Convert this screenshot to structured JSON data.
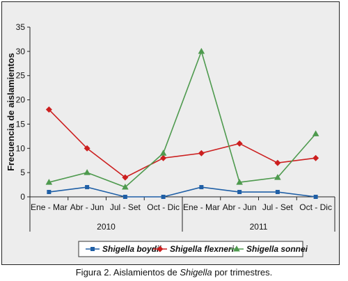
{
  "chart_data": {
    "type": "line",
    "ylabel": "Frecuencia de aislamientos",
    "ylim": [
      0,
      35
    ],
    "yticks": [
      0,
      5,
      10,
      15,
      20,
      25,
      30,
      35
    ],
    "categories": [
      "Ene - Mar",
      "Abr - Jun",
      "Jul - Set",
      "Oct - Dic",
      "Ene - Mar",
      "Abr - Jun",
      "Jul - Set",
      "Oct - Dic"
    ],
    "groups": [
      {
        "label": "2010",
        "span": [
          0,
          3
        ]
      },
      {
        "label": "2011",
        "span": [
          4,
          7
        ]
      }
    ],
    "series": [
      {
        "name": "Shigella boydii",
        "color": "#1f5fa6",
        "marker": "square",
        "values": [
          1,
          2,
          0,
          0,
          2,
          1,
          1,
          0
        ]
      },
      {
        "name": "Shigella flexneri",
        "color": "#cc1f1f",
        "marker": "diamond",
        "values": [
          18,
          10,
          4,
          8,
          9,
          11,
          7,
          8
        ]
      },
      {
        "name": "Shigella sonnei",
        "color": "#4e9a4e",
        "marker": "triangle",
        "values": [
          3,
          5,
          2,
          9,
          30,
          3,
          4,
          13
        ]
      }
    ],
    "grid": false,
    "legend": "bottom"
  },
  "caption": {
    "prefix": "Figura 2. Aislamientos de ",
    "italic": "Shigella",
    "suffix": " por trimestres."
  }
}
